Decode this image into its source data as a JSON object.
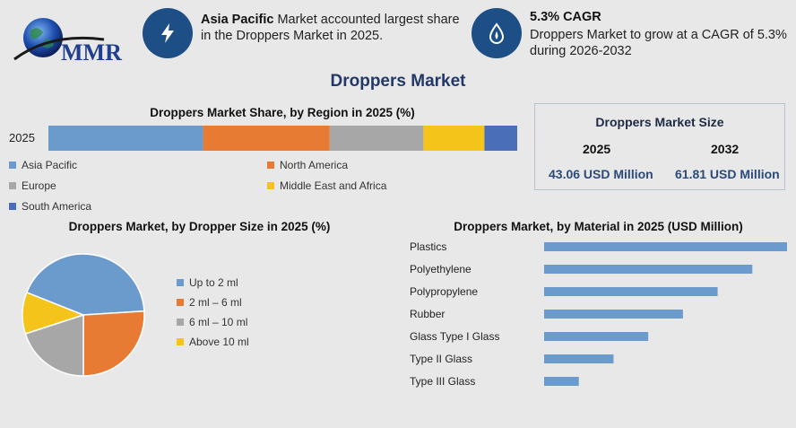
{
  "header": {
    "logo_text": "MMR",
    "highlight1": {
      "bold": "Asia Pacific",
      "text": " Market accounted largest share in the Droppers Market in 2025.",
      "icon": "lightning-icon"
    },
    "highlight2": {
      "bold": "5.3% CAGR",
      "text": "Droppers Market to grow at a CAGR of 5.3% during 2026-2032",
      "icon": "droplet-flame-icon"
    }
  },
  "main_title": "Droppers Market",
  "size_box": {
    "title": "Droppers Market Size",
    "year1": "2025",
    "year2": "2032",
    "value1": "43.06 USD Million",
    "value2": "61.81 USD Million"
  },
  "chart_data": [
    {
      "type": "bar",
      "orientation": "stacked-horizontal",
      "title": "Droppers Market Share, by Region in 2025 (%)",
      "categories": [
        "2025"
      ],
      "series": [
        {
          "name": "Asia Pacific",
          "values": [
            33
          ],
          "color": "#6b9bcc"
        },
        {
          "name": "North America",
          "values": [
            27
          ],
          "color": "#e87b34"
        },
        {
          "name": "Europe",
          "values": [
            20
          ],
          "color": "#a7a7a7"
        },
        {
          "name": "Middle East and Africa",
          "values": [
            13
          ],
          "color": "#f5c41b"
        },
        {
          "name": "South America",
          "values": [
            7
          ],
          "color": "#4a6fb8"
        }
      ]
    },
    {
      "type": "pie",
      "title": "Droppers Market, by Dropper Size in 2025 (%)",
      "labels": [
        "Up to 2 ml",
        "2 ml – 6 ml",
        "6 ml – 10 ml",
        "Above 10 ml"
      ],
      "values": [
        43,
        26,
        20,
        11
      ],
      "colors": [
        "#6b9bcc",
        "#e87b34",
        "#a7a7a7",
        "#f5c41b"
      ]
    },
    {
      "type": "bar",
      "orientation": "horizontal",
      "title": "Droppers Market, by Material in 2025 (USD Million)",
      "categories": [
        "Plastics",
        "Polyethylene",
        "Polypropylene",
        "Rubber",
        "Glass Type I Glass",
        "Type II Glass",
        "Type III Glass"
      ],
      "values": [
        14,
        12,
        10,
        8,
        6,
        4,
        2
      ],
      "color": "#6b9bcc"
    }
  ]
}
